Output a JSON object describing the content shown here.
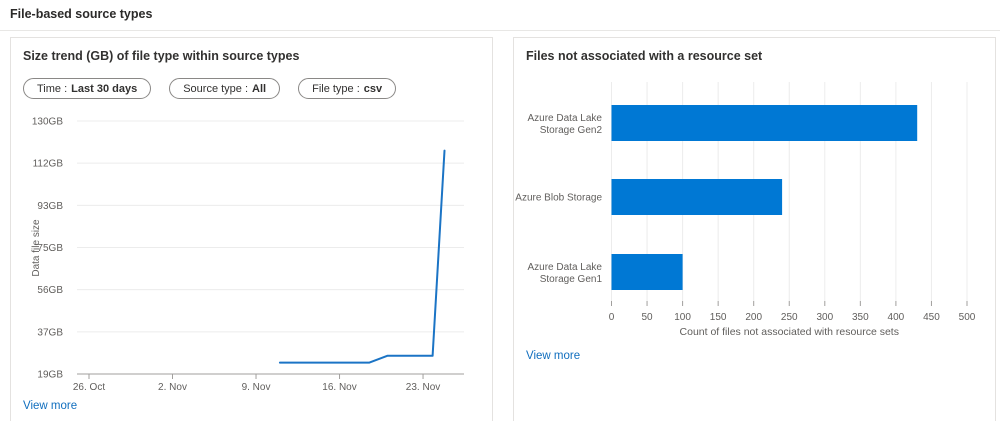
{
  "page": {
    "title": "File-based source types"
  },
  "left_panel": {
    "title": "Size trend (GB) of file type within source types",
    "filters": [
      {
        "label": "Time :",
        "value": "Last 30 days"
      },
      {
        "label": "Source type :",
        "value": "All"
      },
      {
        "label": "File type :",
        "value": "csv"
      }
    ],
    "view_more": "View more"
  },
  "right_panel": {
    "title": "Files not associated with a resource set",
    "view_more": "View more"
  },
  "colors": {
    "bar_blue": "#0078d4",
    "line_blue": "#1b74c5",
    "link_blue": "#106ebe",
    "grid_light": "#ececec",
    "axis_gray": "#a19f9d",
    "axis_text": "#605e5c",
    "title_text": "#323130"
  },
  "chart_data": [
    {
      "type": "line",
      "title": "Size trend (GB) of file type within source types",
      "ylabel": "Data file size",
      "ylim": [
        19,
        130
      ],
      "ytick_labels": [
        "130GB",
        "112GB",
        "93GB",
        "75GB",
        "56GB",
        "37GB",
        "19GB"
      ],
      "xtick_labels": [
        "26. Oct",
        "2. Nov",
        "9. Nov",
        "16. Nov",
        "23. Nov"
      ],
      "xtick_days": [
        0,
        7,
        14,
        21,
        28
      ],
      "x_unit": "days since 26. Oct",
      "grid": true,
      "legend": "none",
      "series": [
        {
          "points": [
            {
              "day": 16.0,
              "gb": 24
            },
            {
              "day": 23.5,
              "gb": 24
            },
            {
              "day": 25.0,
              "gb": 27
            },
            {
              "day": 28.8,
              "gb": 27
            },
            {
              "day": 29.8,
              "gb": 117
            }
          ]
        }
      ]
    },
    {
      "type": "bar",
      "orientation": "horizontal",
      "categories": [
        "Azure Data Lake Storage Gen2",
        "Azure Blob Storage",
        "Azure Data Lake Storage Gen1"
      ],
      "category_lines": [
        [
          "Azure Data Lake",
          "Storage Gen2"
        ],
        [
          "Azure Blob Storage"
        ],
        [
          "Azure Data Lake",
          "Storage Gen1"
        ]
      ],
      "values": [
        430,
        240,
        100
      ],
      "xlabel": "Count of files not associated with resource sets",
      "xticks": [
        0,
        50,
        100,
        150,
        200,
        250,
        300,
        350,
        400,
        450,
        500
      ],
      "xlim": [
        0,
        500
      ],
      "grid": true,
      "legend": "none"
    }
  ]
}
